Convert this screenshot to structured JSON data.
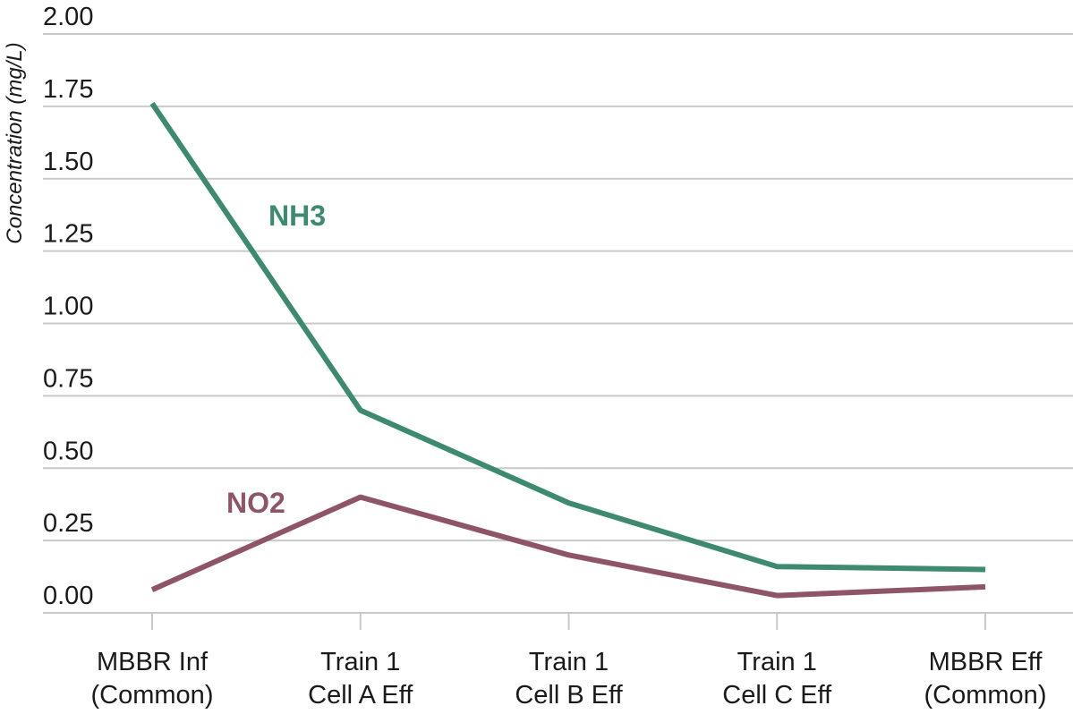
{
  "chart_data": {
    "type": "line",
    "title": "",
    "xlabel": "",
    "ylabel": "Concentration (mg/L)",
    "ylim": [
      0,
      2
    ],
    "yticks": [
      "0.00",
      "0.25",
      "0.50",
      "0.75",
      "1.00",
      "1.25",
      "1.50",
      "1.75",
      "2.00"
    ],
    "grid": true,
    "categories": [
      [
        "MBBR Inf",
        "(Common)"
      ],
      [
        "Train 1",
        "Cell A Eff"
      ],
      [
        "Train 1",
        "Cell B Eff"
      ],
      [
        "Train 1",
        "Cell C Eff"
      ],
      [
        "MBBR Eff",
        "(Common)"
      ]
    ],
    "series": [
      {
        "name": "NH3",
        "color": "#3e8a6e",
        "values": [
          1.76,
          0.7,
          0.38,
          0.16,
          0.15
        ]
      },
      {
        "name": "NO2",
        "color": "#8e5468",
        "values": [
          0.08,
          0.4,
          0.2,
          0.06,
          0.09
        ]
      }
    ]
  }
}
